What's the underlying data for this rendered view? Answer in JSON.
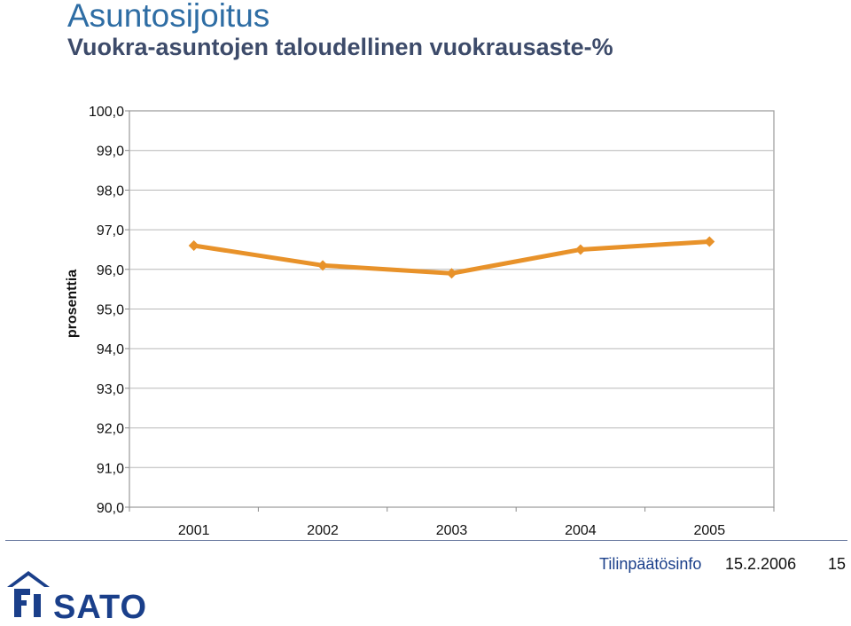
{
  "header": {
    "title": "Asuntosijoitus",
    "subtitle": "Vuokra-asuntojen taloudellinen vuokrausaste-%"
  },
  "colors": {
    "title": "#2e6da4",
    "subtitle": "#3d4b6a",
    "series": "#e8922a",
    "footer": "#1a3f8a"
  },
  "chart_data": {
    "type": "line",
    "ylabel": "prosenttia",
    "xlabel": "",
    "categories": [
      "2001",
      "2002",
      "2003",
      "2004",
      "2005"
    ],
    "series": [
      {
        "values": [
          96.6,
          96.1,
          95.9,
          96.5,
          96.7
        ]
      }
    ],
    "ylim": [
      90,
      100
    ],
    "yticks": [
      "100,0",
      "99,0",
      "98,0",
      "97,0",
      "96,0",
      "95,0",
      "94,0",
      "93,0",
      "92,0",
      "91,0",
      "90,0"
    ],
    "grid": true,
    "legend": "none"
  },
  "footer": {
    "label": "Tilinpäätösinfo",
    "date": "15.2.2006",
    "page": "15"
  },
  "logo": {
    "text": "SATO",
    "icon": "house-icon"
  }
}
